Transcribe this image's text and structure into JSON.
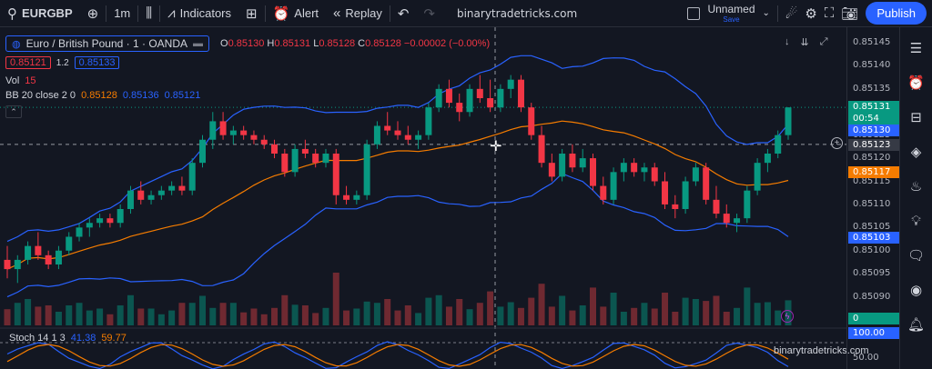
{
  "toolbar": {
    "symbol": "EURGBP",
    "interval": "1m",
    "indicators_label": "Indicators",
    "alert_label": "Alert",
    "replay_label": "Replay",
    "site": "binarytradetricks.com",
    "layout_name": "Unnamed",
    "layout_status": "Save",
    "publish_label": "Publish"
  },
  "legend": {
    "title": "Euro / British Pound · 1 · OANDA",
    "ohlc": {
      "o_label": "O",
      "o": "0.85130",
      "h_label": "H",
      "h": "0.85131",
      "l_label": "L",
      "l": "0.85128",
      "c_label": "C",
      "c": "0.85128",
      "change": "−0.00002 (−0.00%)"
    },
    "bid": "0.85121",
    "spread": "1.2",
    "ask": "0.85133",
    "vol_label": "Vol",
    "vol_value": "15",
    "bb_label": "BB 20 close 2 0",
    "bb_basis": "0.85128",
    "bb_upper": "0.85136",
    "bb_lower": "0.85121",
    "stoch_label": "Stoch 14 1 3",
    "stoch_k": "41.38",
    "stoch_d": "59.77"
  },
  "axis": {
    "ticks": [
      "0.85145",
      "0.85140",
      "0.85135",
      "0.85130",
      "0.85125",
      "0.85120",
      "0.85115",
      "0.85110",
      "0.85105",
      "0.85100",
      "0.85095",
      "0.85090",
      "0.85085"
    ],
    "last_price": "0.85131",
    "countdown": "00:54",
    "bb_upper_tag": "0.85130",
    "crosshair_tag": "0.85123",
    "basis_tag": "0.85117",
    "lower_tag": "0.85103",
    "vol_tag": "0",
    "stoch_tag_top": "100.00",
    "stoch_tag_mid": "50.00"
  },
  "watermark": "binarytradetricks.com",
  "colors": {
    "up": "#089981",
    "down": "#f23645",
    "bb": "#2962ff",
    "basis": "#f57c00",
    "accent": "#2962ff"
  },
  "chart_data": {
    "type": "candlestick",
    "series": [
      {
        "name": "price",
        "ohlc": [
          [
            0.85098,
            0.85101,
            0.85094,
            0.85096
          ],
          [
            0.85096,
            0.85099,
            0.85093,
            0.85098
          ],
          [
            0.85098,
            0.85102,
            0.85097,
            0.85101
          ],
          [
            0.85101,
            0.85104,
            0.85098,
            0.85099
          ],
          [
            0.85099,
            0.851,
            0.85096,
            0.85097
          ],
          [
            0.85097,
            0.85101,
            0.85096,
            0.851
          ],
          [
            0.851,
            0.85104,
            0.85099,
            0.85103
          ],
          [
            0.85103,
            0.85106,
            0.85102,
            0.85105
          ],
          [
            0.85105,
            0.85107,
            0.85103,
            0.85106
          ],
          [
            0.85106,
            0.85108,
            0.85105,
            0.85107
          ],
          [
            0.85107,
            0.85108,
            0.85105,
            0.85106
          ],
          [
            0.85106,
            0.8511,
            0.85105,
            0.85109
          ],
          [
            0.85109,
            0.85114,
            0.85108,
            0.85113
          ],
          [
            0.85113,
            0.85115,
            0.8511,
            0.85111
          ],
          [
            0.85111,
            0.85113,
            0.8511,
            0.85112
          ],
          [
            0.85112,
            0.85114,
            0.85111,
            0.85113
          ],
          [
            0.85113,
            0.85115,
            0.85112,
            0.85114
          ],
          [
            0.85114,
            0.85116,
            0.85112,
            0.85113
          ],
          [
            0.85113,
            0.8512,
            0.85112,
            0.85119
          ],
          [
            0.85119,
            0.85125,
            0.85118,
            0.85124
          ],
          [
            0.85124,
            0.8513,
            0.85122,
            0.85128
          ],
          [
            0.85128,
            0.8513,
            0.85124,
            0.85125
          ],
          [
            0.85125,
            0.85127,
            0.85123,
            0.85126
          ],
          [
            0.85126,
            0.85127,
            0.85124,
            0.85125
          ],
          [
            0.85125,
            0.85126,
            0.85123,
            0.85124
          ],
          [
            0.85124,
            0.85125,
            0.85122,
            0.85123
          ],
          [
            0.85123,
            0.85124,
            0.8512,
            0.85121
          ],
          [
            0.85121,
            0.85122,
            0.85116,
            0.85117
          ],
          [
            0.85117,
            0.85123,
            0.85116,
            0.85122
          ],
          [
            0.85122,
            0.85124,
            0.8512,
            0.85121
          ],
          [
            0.85121,
            0.85122,
            0.85118,
            0.85119
          ],
          [
            0.85119,
            0.85122,
            0.85118,
            0.85121
          ],
          [
            0.85121,
            0.85122,
            0.8511,
            0.85112
          ],
          [
            0.85112,
            0.85114,
            0.8511,
            0.85111
          ],
          [
            0.85111,
            0.85113,
            0.8511,
            0.85112
          ],
          [
            0.85112,
            0.85124,
            0.85111,
            0.85123
          ],
          [
            0.85123,
            0.85128,
            0.85122,
            0.85127
          ],
          [
            0.85127,
            0.8513,
            0.85125,
            0.85126
          ],
          [
            0.85126,
            0.85128,
            0.85124,
            0.85125
          ],
          [
            0.85125,
            0.85127,
            0.85123,
            0.85124
          ],
          [
            0.85124,
            0.85126,
            0.85122,
            0.85125
          ],
          [
            0.85125,
            0.85132,
            0.85124,
            0.85131
          ],
          [
            0.85131,
            0.85136,
            0.8513,
            0.85135
          ],
          [
            0.85135,
            0.85137,
            0.85131,
            0.85132
          ],
          [
            0.85132,
            0.85134,
            0.85128,
            0.8513
          ],
          [
            0.8513,
            0.85136,
            0.85129,
            0.85135
          ],
          [
            0.85135,
            0.85138,
            0.85132,
            0.85133
          ],
          [
            0.85133,
            0.85137,
            0.8513,
            0.85131
          ],
          [
            0.85131,
            0.85136,
            0.8513,
            0.85135
          ],
          [
            0.85135,
            0.85138,
            0.85133,
            0.85137
          ],
          [
            0.85137,
            0.85138,
            0.8513,
            0.85131
          ],
          [
            0.85131,
            0.85132,
            0.85124,
            0.85125
          ],
          [
            0.85125,
            0.85127,
            0.85118,
            0.85119
          ],
          [
            0.85119,
            0.85121,
            0.85115,
            0.85116
          ],
          [
            0.85116,
            0.85122,
            0.85115,
            0.85121
          ],
          [
            0.85121,
            0.85123,
            0.85117,
            0.85118
          ],
          [
            0.85118,
            0.85122,
            0.85117,
            0.8512
          ],
          [
            0.8512,
            0.85121,
            0.85113,
            0.85114
          ],
          [
            0.85114,
            0.85116,
            0.8511,
            0.85111
          ],
          [
            0.85111,
            0.85118,
            0.8511,
            0.85117
          ],
          [
            0.85117,
            0.8512,
            0.85115,
            0.85119
          ],
          [
            0.85119,
            0.8512,
            0.85116,
            0.85117
          ],
          [
            0.85117,
            0.85119,
            0.85115,
            0.85118
          ],
          [
            0.85118,
            0.85119,
            0.85114,
            0.85115
          ],
          [
            0.85115,
            0.85117,
            0.85109,
            0.8511
          ],
          [
            0.8511,
            0.85112,
            0.85107,
            0.85109
          ],
          [
            0.85109,
            0.85116,
            0.85108,
            0.85115
          ],
          [
            0.85115,
            0.85119,
            0.85114,
            0.85118
          ],
          [
            0.85118,
            0.85119,
            0.8511,
            0.85111
          ],
          [
            0.85111,
            0.85114,
            0.85107,
            0.85108
          ],
          [
            0.85108,
            0.8511,
            0.85105,
            0.85106
          ],
          [
            0.85106,
            0.85108,
            0.85104,
            0.85107
          ],
          [
            0.85107,
            0.85114,
            0.85106,
            0.85113
          ],
          [
            0.85113,
            0.8512,
            0.85112,
            0.85119
          ],
          [
            0.85119,
            0.85122,
            0.85117,
            0.85121
          ],
          [
            0.85121,
            0.85126,
            0.8512,
            0.85125
          ],
          [
            0.85125,
            0.85131,
            0.85124,
            0.85131
          ]
        ]
      }
    ]
  }
}
